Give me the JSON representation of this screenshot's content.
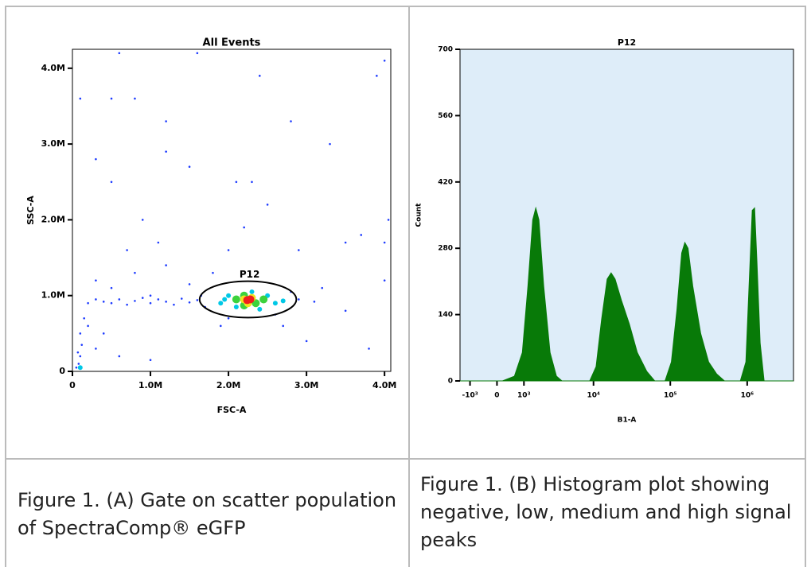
{
  "chart_data": [
    {
      "type": "scatter",
      "title": "All Events",
      "x_label": "FSC-A",
      "y_label": "SSC-A",
      "xlim": [
        0,
        4080000
      ],
      "ylim": [
        0,
        4250000
      ],
      "xticks": [
        0,
        {
          "value": 1000000,
          "label": "1.0M"
        },
        {
          "value": 2000000,
          "label": "2.0M"
        },
        {
          "value": 3000000,
          "label": "3.0M"
        },
        {
          "value": 4000000,
          "label": "4.0M"
        }
      ],
      "yticks": [
        0,
        {
          "value": 1000000,
          "label": "1.0M"
        },
        {
          "value": 2000000,
          "label": "2.0M"
        },
        {
          "value": 3000000,
          "label": "3.0M"
        },
        {
          "value": 4000000,
          "label": "4.0M"
        }
      ],
      "gate": {
        "label": "P12",
        "center": [
          2250000,
          950000
        ],
        "radii": [
          620000,
          240000
        ]
      },
      "series": [
        {
          "color": "#1e3cff",
          "marker_size": 1.3,
          "x": [
            100000,
            80000,
            120000,
            100000,
            150000,
            200000,
            300000,
            400000,
            500000,
            600000,
            700000,
            800000,
            900000,
            1000000,
            1100000,
            1200000,
            1300000,
            1400000,
            1500000,
            1600000,
            300000,
            500000,
            800000,
            1200000,
            1500000,
            1800000,
            2000000,
            2200000,
            2300000,
            2100000,
            2500000,
            2900000,
            3200000,
            3500000,
            3800000,
            4000000,
            4050000,
            4000000,
            3700000,
            3900000,
            4000000,
            100000,
            500000,
            800000,
            1200000,
            1200000,
            1500000,
            900000,
            500000,
            300000,
            2400000,
            1600000,
            600000,
            1000000,
            200000,
            400000,
            300000,
            600000,
            1000000,
            2700000,
            3000000,
            1900000,
            2000000,
            2600000,
            2900000,
            3100000,
            1700000,
            1650000,
            2800000,
            3300000,
            2800000,
            3500000,
            700000,
            1100000,
            50000,
            70000
          ],
          "y": [
            200000,
            100000,
            350000,
            500000,
            700000,
            900000,
            950000,
            920000,
            900000,
            950000,
            880000,
            930000,
            970000,
            900000,
            950000,
            920000,
            880000,
            960000,
            910000,
            940000,
            1200000,
            1100000,
            1300000,
            1400000,
            1150000,
            1300000,
            1600000,
            1900000,
            2500000,
            2500000,
            2200000,
            1600000,
            1100000,
            800000,
            300000,
            1200000,
            2000000,
            1700000,
            1800000,
            3900000,
            4100000,
            3600000,
            3600000,
            3600000,
            3300000,
            2900000,
            2700000,
            2000000,
            2500000,
            2800000,
            3900000,
            4200000,
            4200000,
            1000000,
            600000,
            500000,
            300000,
            200000,
            150000,
            600000,
            400000,
            600000,
            700000,
            750000,
            950000,
            920000,
            850000,
            1000000,
            1050000,
            3000000,
            3300000,
            1700000,
            1600000,
            1700000,
            50000,
            250000
          ]
        },
        {
          "color": "#00c8e6",
          "marker_size": 3,
          "x": [
            1900000,
            2000000,
            2100000,
            2500000,
            2600000,
            2400000,
            2300000,
            1950000,
            2700000,
            100000
          ],
          "y": [
            900000,
            1000000,
            850000,
            1000000,
            900000,
            820000,
            1050000,
            950000,
            930000,
            50000
          ]
        },
        {
          "color": "#3cd23c",
          "marker_size": 5,
          "x": [
            2100000,
            2200000,
            2350000,
            2450000,
            2200000
          ],
          "y": [
            950000,
            1000000,
            900000,
            950000,
            870000
          ]
        },
        {
          "color": "#f0e61e",
          "marker_size": 5,
          "x": [
            2200000,
            2300000,
            2250000
          ],
          "y": [
            950000,
            970000,
            900000
          ]
        },
        {
          "color": "#f01e1e",
          "marker_size": 5,
          "x": [
            2240000,
            2280000
          ],
          "y": [
            940000,
            950000
          ]
        }
      ]
    },
    {
      "type": "area",
      "title": "P12",
      "x_label": "B1-A",
      "y_label": "Count",
      "x_scale": "biexponential",
      "color": "#087a08",
      "background": "#deedf9",
      "xlim": [
        -1500,
        4000000
      ],
      "ylim": [
        0,
        700
      ],
      "xticks": [
        {
          "value": -1000,
          "label": "-10³"
        },
        0,
        {
          "value": 1000,
          "label": "10³"
        },
        {
          "value": 10000,
          "label": "10⁴"
        },
        {
          "value": 100000,
          "label": "10⁵"
        },
        {
          "value": 1000000,
          "label": "10⁶"
        }
      ],
      "yticks": [
        0,
        140,
        280,
        420,
        560,
        700
      ],
      "x": [
        -1500,
        186,
        609,
        930,
        1187,
        1434,
        1606,
        1797,
        2120,
        2617,
        3212,
        3819,
        8920,
        10800,
        12760,
        15080,
        16980,
        19130,
        23140,
        29330,
        37200,
        49460,
        62720,
        85400,
        103300,
        121900,
        140600,
        154600,
        170000,
        196000,
        248500,
        315100,
        399500,
        506500,
        814300,
        961400,
        1057000,
        1163000,
        1248000,
        1340000,
        1474000,
        1660000,
        4000000
      ],
      "values": [
        0,
        0,
        10,
        60,
        200,
        340,
        365,
        340,
        200,
        60,
        10,
        0,
        0,
        30,
        130,
        215,
        228,
        215,
        170,
        120,
        60,
        20,
        0,
        0,
        40,
        150,
        270,
        292,
        280,
        200,
        100,
        40,
        15,
        0,
        0,
        40,
        200,
        360,
        365,
        250,
        80,
        0,
        0
      ]
    }
  ],
  "table": {
    "captions": [
      "Figure 1. (A) Gate on scatter population of SpectraComp® eGFP",
      "Figure 1. (B) Histogram plot showing negative, low, medium and high signal peaks"
    ]
  }
}
